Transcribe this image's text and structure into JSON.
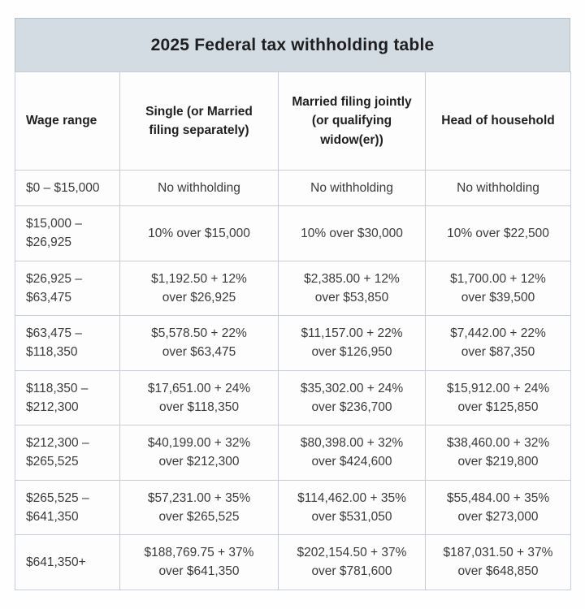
{
  "title": "2025 Federal tax withholding table",
  "colors": {
    "title_band_bg": "#d3dce3",
    "border": "#c7cdd2",
    "cell_bg": "#fdfdfd",
    "text": "#3a3a3c"
  },
  "table": {
    "columns": [
      "Wage range",
      "Single (or Married\nfiling separately)",
      "Married filing jointly\n(or qualifying\nwidow(er))",
      "Head of household"
    ],
    "rows": [
      [
        "$0 – $15,000",
        "No withholding",
        "No withholding",
        "No withholding"
      ],
      [
        "$15,000 –\n$26,925",
        "10% over $15,000",
        "10% over $30,000",
        "10% over $22,500"
      ],
      [
        "$26,925 –\n$63,475",
        "$1,192.50 + 12%\nover $26,925",
        "$2,385.00 + 12%\nover $53,850",
        "$1,700.00 + 12%\nover $39,500"
      ],
      [
        "$63,475 –\n$118,350",
        "$5,578.50 + 22%\nover $63,475",
        "$11,157.00 + 22%\nover $126,950",
        "$7,442.00 + 22%\nover $87,350"
      ],
      [
        "$118,350 –\n$212,300",
        "$17,651.00 + 24%\nover $118,350",
        "$35,302.00 + 24%\nover $236,700",
        "$15,912.00 + 24%\nover $125,850"
      ],
      [
        "$212,300 –\n$265,525",
        "$40,199.00 + 32%\nover $212,300",
        "$80,398.00 + 32%\nover $424,600",
        "$38,460.00 + 32%\nover $219,800"
      ],
      [
        "$265,525 –\n$641,350",
        "$57,231.00 + 35%\nover $265,525",
        "$114,462.00 + 35%\nover $531,050",
        "$55,484.00 + 35%\nover $273,000"
      ],
      [
        "$641,350+",
        "$188,769.75 + 37%\nover $641,350",
        "$202,154.50 + 37%\nover $781,600",
        "$187,031.50 + 37%\nover $648,850"
      ]
    ]
  }
}
